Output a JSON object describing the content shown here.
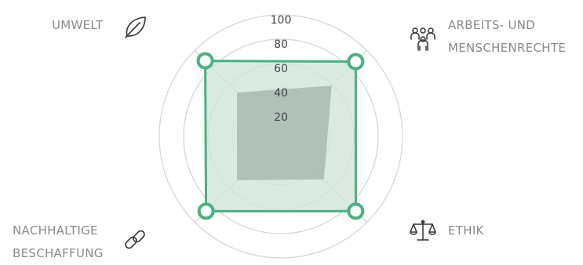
{
  "chart_data": {
    "type": "radar",
    "title": "",
    "axes": [
      "UMWELT",
      "ARBEITS- UND MENSCHENRECHTE",
      "ETHIK",
      "NACHHALTIGE BESCHAFFUNG"
    ],
    "label_lines": {
      "umwelt": [
        "UMWELT"
      ],
      "arbeit": [
        "ARBEITS- UND",
        "MENSCHENRECHTE"
      ],
      "ethik": [
        "ETHIK"
      ],
      "beschaffung": [
        "NACHHALTIGE",
        "BESCHAFFUNG"
      ]
    },
    "rlim": [
      0,
      100
    ],
    "ticks": [
      20,
      40,
      60,
      80,
      100
    ],
    "tick_labels": [
      "20",
      "40",
      "60",
      "80",
      "100"
    ],
    "grid": true,
    "series": [
      {
        "values": [
          88,
          87,
          87,
          87
        ],
        "color": "#4caf82",
        "fill": "#cfe6dc"
      },
      {
        "values": [
          51,
          59,
          50,
          51
        ],
        "color": "#a9bdb3",
        "fill": "#aabcb2"
      }
    ],
    "icons": {
      "umwelt": "leaf-icon",
      "arbeit": "people-icon",
      "ethik": "scales-icon",
      "beschaffung": "chain-link-icon"
    }
  }
}
